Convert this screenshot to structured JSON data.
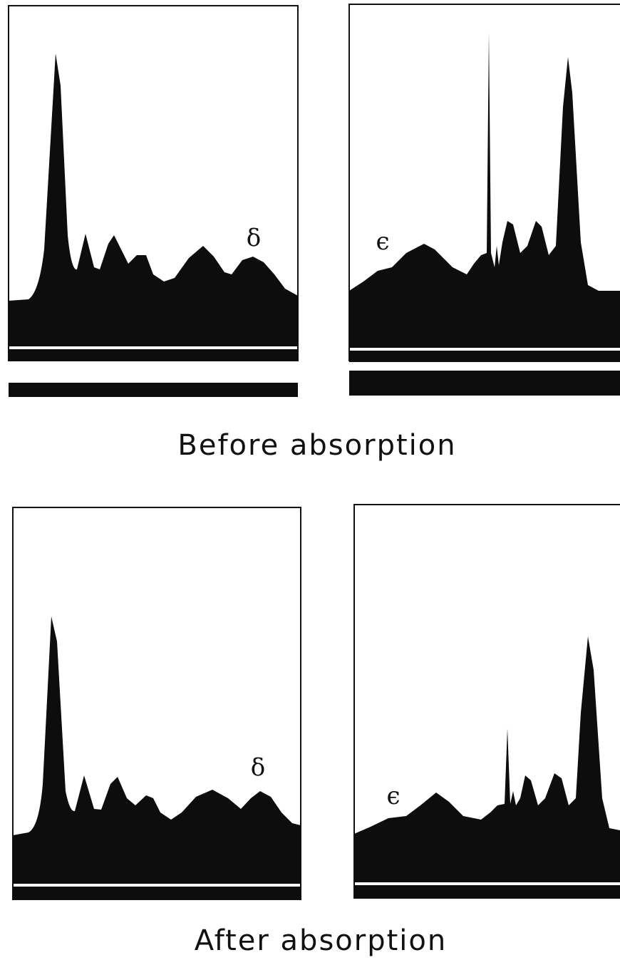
{
  "rows": [
    {
      "caption": "Before absorption",
      "panels": [
        {
          "label": "δ"
        },
        {
          "label": "ϵ"
        }
      ]
    },
    {
      "caption": "After absorption",
      "panels": [
        {
          "label": "δ"
        },
        {
          "label": "ϵ"
        }
      ]
    }
  ]
}
